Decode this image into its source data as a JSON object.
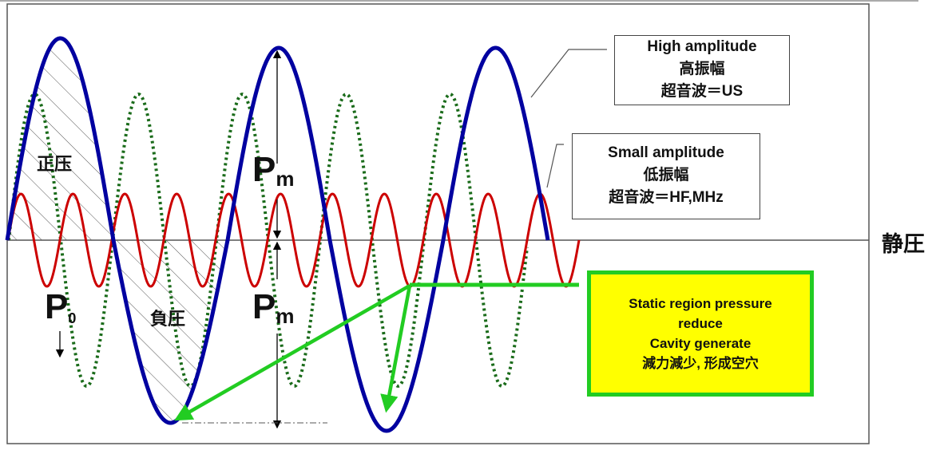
{
  "labels": {
    "positive_pressure": "正压",
    "negative_pressure": "負圧",
    "static_pressure": "静圧",
    "pm_upper": {
      "main": "P",
      "sub": "m"
    },
    "pm_lower": {
      "main": "P",
      "sub": "m"
    },
    "p0": {
      "main": "P",
      "sub": "0"
    }
  },
  "high_amplitude_box": {
    "lines": [
      "High amplitude",
      "高振幅",
      "超音波＝US"
    ]
  },
  "small_amplitude_box": {
    "lines": [
      "Small amplitude",
      "低振幅",
      "超音波＝HF,MHz"
    ]
  },
  "callout_box": {
    "lines": [
      "Static region pressure",
      "reduce",
      "Cavity generate",
      "減力減少, 形成空穴"
    ]
  },
  "colors": {
    "high_amplitude_wave": "#0000a0",
    "small_amplitude_wave": "#cc0000",
    "dotted_wave": "#1a6b1a",
    "callout_arrow": "#22cc22",
    "callout_fill": "#ffff00",
    "hatch": "#555555"
  }
}
